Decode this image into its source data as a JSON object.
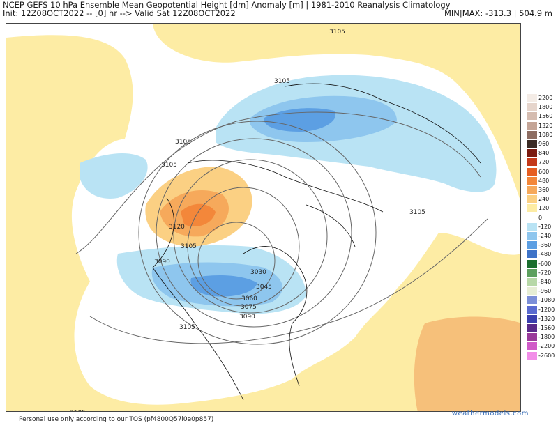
{
  "header": {
    "line1": "NCEP GEFS 10 hPa Ensemble Mean Geopotential Height [dm] Anomaly [m] | 1981-2010 Reanalysis Climatology",
    "line2": "Init: 12Z08OCT2022 -- [0] hr --> Valid Sat 12Z08OCT2022",
    "minmax": "MIN|MAX: -313.3 | 504.9 m"
  },
  "contour_labels": [
    "3105",
    "3105",
    "3105",
    "3105",
    "3120",
    "3105",
    "3090",
    "3030",
    "3045",
    "3060",
    "3075",
    "3090",
    "3105",
    "3105",
    "3105"
  ],
  "colorbar": [
    {
      "label": "2200",
      "color": "#f4ece6"
    },
    {
      "label": "1800",
      "color": "#e6d5cc"
    },
    {
      "label": "1560",
      "color": "#d5bcb0"
    },
    {
      "label": "1320",
      "color": "#c4a597"
    },
    {
      "label": "1080",
      "color": "#8d6d62"
    },
    {
      "label": "960",
      "color": "#3a2a24"
    },
    {
      "label": "840",
      "color": "#7a1a10"
    },
    {
      "label": "720",
      "color": "#c4391a"
    },
    {
      "label": "600",
      "color": "#e65e22"
    },
    {
      "label": "480",
      "color": "#f3873a"
    },
    {
      "label": "360",
      "color": "#f6a95b"
    },
    {
      "label": "240",
      "color": "#fbd083"
    },
    {
      "label": "120",
      "color": "#fdeca4"
    },
    {
      "label": "0",
      "color": "#ffffff"
    },
    {
      "label": "-120",
      "color": "#b9e3f4"
    },
    {
      "label": "-240",
      "color": "#8ec6ee"
    },
    {
      "label": "-360",
      "color": "#5c9fe3"
    },
    {
      "label": "-480",
      "color": "#3e73c8"
    },
    {
      "label": "-600",
      "color": "#1b6e2e"
    },
    {
      "label": "-720",
      "color": "#5da05e"
    },
    {
      "label": "-840",
      "color": "#b7d8a7"
    },
    {
      "label": "-960",
      "color": "#e7eed5"
    },
    {
      "label": "-1080",
      "color": "#7c8fd8"
    },
    {
      "label": "-1200",
      "color": "#5a6bd0"
    },
    {
      "label": "-1320",
      "color": "#3a3fae"
    },
    {
      "label": "-1560",
      "color": "#5a2a8a"
    },
    {
      "label": "-1800",
      "color": "#9a3a9a"
    },
    {
      "label": "-2200",
      "color": "#d05ac8"
    },
    {
      "label": "-2600",
      "color": "#f28ee8"
    }
  ],
  "footer": {
    "tos": "Personal use only according to our TOS (pf4800Q57l0e0p857)",
    "brand": "weathermodels.com"
  }
}
